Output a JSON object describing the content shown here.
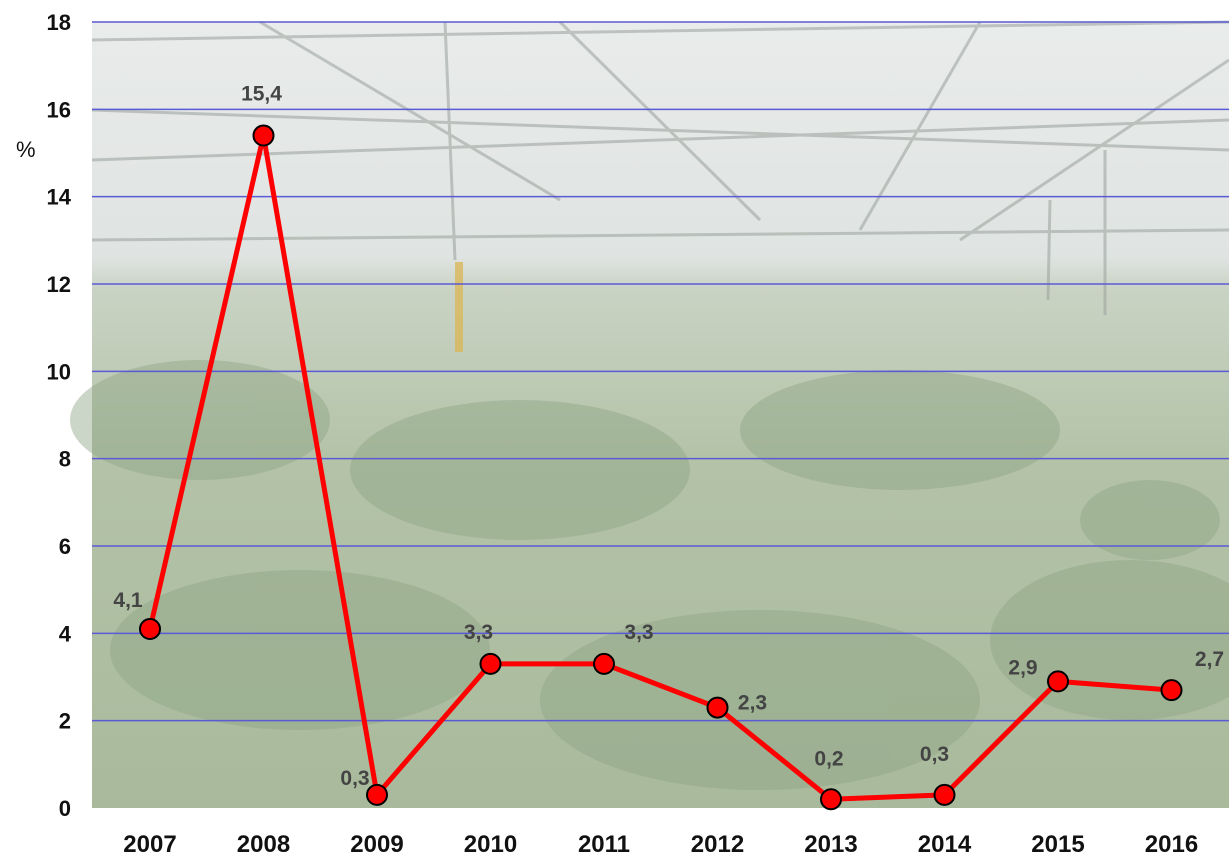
{
  "chart_data": {
    "type": "line",
    "title": "",
    "xlabel": "",
    "ylabel": "%",
    "categories": [
      "2007",
      "2008",
      "2009",
      "2010",
      "2011",
      "2012",
      "2013",
      "2014",
      "2015",
      "2016"
    ],
    "series": [
      {
        "values": [
          4.1,
          15.4,
          0.3,
          3.3,
          3.3,
          2.3,
          0.2,
          0.3,
          2.9,
          2.7
        ]
      }
    ],
    "data_labels": [
      "4,1",
      "15,4",
      "0,3",
      "3,3",
      "3,3",
      "2,3",
      "0,2",
      "0,3",
      "2,9",
      "2,7"
    ],
    "ylim": [
      0,
      18
    ],
    "yticks": [
      0,
      2,
      4,
      6,
      8,
      10,
      12,
      14,
      16,
      18
    ],
    "ytick_labels": [
      "0",
      "2",
      "4",
      "6",
      "8",
      "10",
      "12",
      "14",
      "16",
      "18"
    ],
    "grid": true,
    "legend": "none",
    "background": "greenhouse photograph with seedlings",
    "colors": {
      "line": "#ff0000",
      "marker_fill": "#ff0000",
      "marker_stroke": "#000000",
      "grid": "#5a5ad6",
      "data_label": "#444444"
    }
  }
}
